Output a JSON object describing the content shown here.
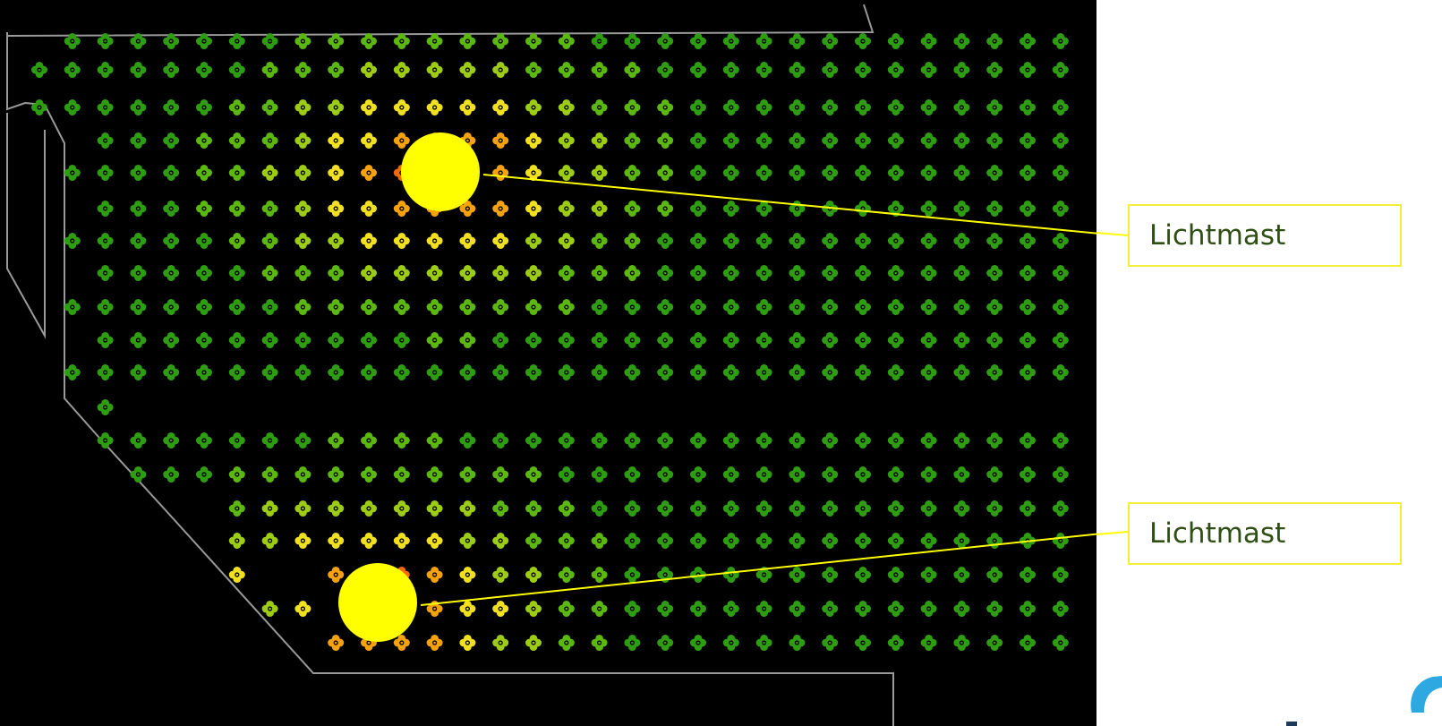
{
  "callouts": [
    {
      "label": "Lichtmast"
    },
    {
      "label": "Lichtmast"
    }
  ],
  "colors": {
    "background": "#000000",
    "outline": "#9a9a9a",
    "light_mast": "#ffff00",
    "leader_line": "#ffff00",
    "callout_border": "#f2ee3a",
    "callout_text": "#2f4f14",
    "illuminance_scale": [
      "#2f9d12",
      "#5cb810",
      "#9ccc14",
      "#f0e020",
      "#f5a20d",
      "#f26a10",
      "#e42a10"
    ]
  },
  "icons": {
    "measurement_point": "clover-marker-icon",
    "light_mast": "light-mast-circle-icon",
    "brand": "brand-logo-icon"
  }
}
